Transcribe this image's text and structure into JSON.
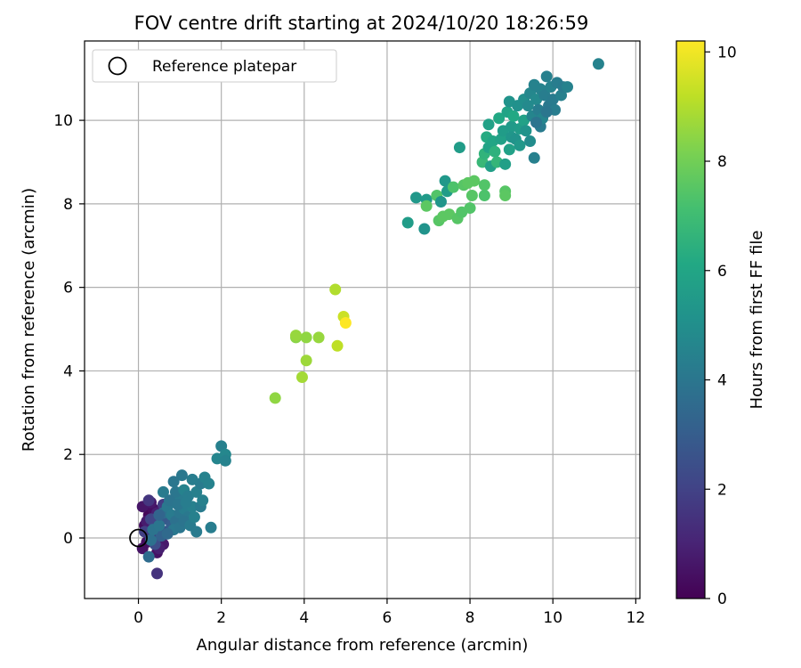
{
  "chart_data": {
    "type": "scatter",
    "title": "FOV centre drift starting at 2024/10/20 18:26:59",
    "xlabel": "Angular distance from reference (arcmin)",
    "ylabel": "Rotation from reference (arcmin)",
    "xlim": [
      -1.3,
      12.1
    ],
    "ylim": [
      -1.45,
      11.9
    ],
    "xticks": [
      0,
      2,
      4,
      6,
      8,
      10,
      12
    ],
    "yticks": [
      0,
      2,
      4,
      6,
      8,
      10
    ],
    "grid": true,
    "legend": {
      "position": "top-left",
      "entries": [
        "Reference platepar"
      ]
    },
    "reference_point": {
      "x": 0,
      "y": 0,
      "label": "Reference platepar"
    },
    "colorbar": {
      "label": "Hours from first FF file",
      "colormap": "viridis",
      "range": [
        0,
        10.2
      ],
      "ticks": [
        0,
        2,
        4,
        6,
        8,
        10
      ]
    },
    "points": [
      [
        0.1,
        -0.25,
        0.5
      ],
      [
        0.2,
        -0.1,
        0.4
      ],
      [
        0.3,
        0.0,
        0.6
      ],
      [
        0.15,
        0.3,
        0.3
      ],
      [
        0.25,
        0.55,
        0.2
      ],
      [
        0.35,
        0.7,
        0.4
      ],
      [
        0.1,
        0.75,
        0.6
      ],
      [
        0.3,
        0.85,
        0.7
      ],
      [
        0.2,
        0.4,
        0.8
      ],
      [
        0.4,
        0.2,
        1.0
      ],
      [
        0.5,
        0.35,
        1.2
      ],
      [
        0.45,
        0.6,
        0.9
      ],
      [
        0.55,
        0.1,
        1.1
      ],
      [
        0.6,
        -0.15,
        0.7
      ],
      [
        0.45,
        -0.35,
        0.5
      ],
      [
        0.5,
        -0.25,
        0.9
      ],
      [
        0.35,
        -0.05,
        1.3
      ],
      [
        0.45,
        -0.85,
        1.5
      ],
      [
        0.25,
        0.9,
        1.6
      ],
      [
        0.6,
        0.8,
        1.8
      ],
      [
        0.15,
        0.15,
        1.9
      ],
      [
        0.3,
        0.45,
        2.1
      ],
      [
        0.55,
        0.5,
        2.2
      ],
      [
        0.4,
        -0.15,
        2.4
      ],
      [
        0.65,
        0.15,
        2.6
      ],
      [
        0.7,
        0.45,
        2.8
      ],
      [
        0.8,
        0.3,
        3.0
      ],
      [
        0.55,
        0.05,
        3.2
      ],
      [
        0.25,
        -0.45,
        3.6
      ],
      [
        0.3,
        -0.05,
        3.8
      ],
      [
        0.35,
        0.2,
        3.9
      ],
      [
        0.5,
        0.3,
        4.0
      ],
      [
        0.6,
        0.6,
        3.7
      ],
      [
        0.7,
        0.75,
        4.1
      ],
      [
        0.8,
        0.55,
        4.2
      ],
      [
        0.9,
        0.4,
        3.8
      ],
      [
        1.0,
        0.6,
        4.0
      ],
      [
        1.1,
        0.7,
        4.3
      ],
      [
        1.2,
        0.5,
        4.1
      ],
      [
        1.3,
        0.75,
        4.4
      ],
      [
        1.0,
        0.95,
        4.2
      ],
      [
        0.9,
        1.1,
        4.0
      ],
      [
        1.1,
        1.15,
        4.5
      ],
      [
        1.2,
        1.0,
        4.3
      ],
      [
        1.4,
        1.1,
        4.4
      ],
      [
        1.5,
        1.3,
        4.2
      ],
      [
        1.6,
        1.45,
        4.5
      ],
      [
        1.3,
        1.4,
        4.3
      ],
      [
        1.05,
        1.5,
        4.1
      ],
      [
        0.85,
        1.35,
        4.0
      ],
      [
        0.6,
        1.1,
        4.2
      ],
      [
        0.75,
        0.9,
        3.9
      ],
      [
        0.95,
        0.8,
        4.0
      ],
      [
        1.15,
        0.85,
        4.3
      ],
      [
        0.85,
        0.2,
        4.1
      ],
      [
        1.0,
        0.25,
        4.0
      ],
      [
        1.1,
        0.4,
        3.9
      ],
      [
        1.25,
        0.3,
        4.2
      ],
      [
        1.35,
        0.5,
        4.4
      ],
      [
        1.5,
        0.75,
        4.2
      ],
      [
        1.55,
        0.9,
        4.4
      ],
      [
        1.7,
        1.3,
        4.5
      ],
      [
        1.75,
        0.25,
        4.3
      ],
      [
        1.4,
        0.15,
        4.2
      ],
      [
        1.9,
        1.9,
        4.6
      ],
      [
        2.0,
        2.2,
        4.4
      ],
      [
        2.1,
        2.0,
        4.7
      ],
      [
        2.1,
        1.85,
        4.5
      ],
      [
        0.7,
        0.1,
        3.5
      ],
      [
        0.5,
        0.55,
        3.3
      ],
      [
        3.3,
        3.35,
        8.5
      ],
      [
        3.8,
        4.8,
        8.4
      ],
      [
        3.8,
        4.85,
        8.6
      ],
      [
        4.05,
        4.8,
        8.5
      ],
      [
        4.35,
        4.8,
        8.6
      ],
      [
        4.05,
        4.25,
        8.7
      ],
      [
        3.95,
        3.85,
        8.8
      ],
      [
        4.75,
        5.95,
        9.0
      ],
      [
        4.8,
        4.6,
        9.2
      ],
      [
        4.95,
        5.3,
        9.4
      ],
      [
        5.0,
        5.15,
        10.2
      ],
      [
        6.5,
        7.55,
        5.6
      ],
      [
        6.7,
        8.15,
        5.4
      ],
      [
        6.9,
        7.4,
        5.2
      ],
      [
        6.95,
        8.1,
        5.5
      ],
      [
        6.95,
        7.95,
        7.6
      ],
      [
        7.2,
        8.2,
        7.4
      ],
      [
        7.25,
        7.6,
        7.5
      ],
      [
        7.3,
        8.05,
        5.3
      ],
      [
        7.35,
        7.7,
        7.6
      ],
      [
        7.4,
        8.55,
        5.4
      ],
      [
        7.45,
        8.3,
        5.6
      ],
      [
        7.5,
        7.75,
        7.6
      ],
      [
        7.6,
        8.4,
        7.3
      ],
      [
        7.7,
        7.65,
        7.5
      ],
      [
        7.8,
        7.8,
        7.4
      ],
      [
        7.85,
        8.45,
        7.5
      ],
      [
        7.95,
        8.5,
        7.6
      ],
      [
        8.0,
        7.9,
        7.4
      ],
      [
        8.05,
        8.2,
        7.5
      ],
      [
        8.1,
        8.55,
        7.6
      ],
      [
        7.75,
        9.35,
        5.6
      ],
      [
        8.3,
        9.0,
        6.8
      ],
      [
        8.35,
        9.2,
        6.6
      ],
      [
        8.35,
        8.45,
        7.4
      ],
      [
        8.35,
        8.2,
        7.3
      ],
      [
        8.4,
        9.6,
        6.2
      ],
      [
        8.45,
        9.9,
        5.8
      ],
      [
        8.45,
        9.35,
        5.9
      ],
      [
        8.5,
        8.9,
        5.7
      ],
      [
        8.55,
        9.5,
        6.0
      ],
      [
        8.6,
        9.25,
        6.5
      ],
      [
        8.65,
        9.0,
        6.7
      ],
      [
        8.7,
        10.05,
        6.1
      ],
      [
        8.75,
        9.55,
        5.8
      ],
      [
        8.8,
        9.75,
        5.6
      ],
      [
        8.85,
        8.95,
        5.7
      ],
      [
        8.85,
        8.3,
        7.5
      ],
      [
        8.85,
        8.2,
        7.6
      ],
      [
        8.9,
        10.2,
        5.9
      ],
      [
        8.95,
        10.45,
        5.2
      ],
      [
        8.95,
        9.3,
        5.8
      ],
      [
        9.0,
        9.85,
        5.5
      ],
      [
        9.0,
        9.6,
        5.3
      ],
      [
        9.05,
        10.1,
        6.1
      ],
      [
        9.1,
        9.55,
        5.2
      ],
      [
        9.15,
        10.35,
        5.1
      ],
      [
        9.2,
        9.8,
        5.6
      ],
      [
        9.2,
        9.4,
        5.4
      ],
      [
        9.3,
        10.5,
        5.0
      ],
      [
        9.3,
        10.0,
        5.8
      ],
      [
        9.35,
        9.75,
        5.2
      ],
      [
        9.4,
        10.35,
        4.8
      ],
      [
        9.45,
        10.65,
        4.7
      ],
      [
        9.45,
        9.5,
        4.9
      ],
      [
        9.5,
        10.1,
        4.6
      ],
      [
        9.55,
        10.85,
        4.5
      ],
      [
        9.55,
        9.1,
        4.4
      ],
      [
        9.6,
        10.5,
        4.8
      ],
      [
        9.65,
        10.25,
        4.3
      ],
      [
        9.7,
        10.75,
        4.5
      ],
      [
        9.7,
        9.85,
        4.2
      ],
      [
        9.75,
        10.05,
        4.6
      ],
      [
        9.8,
        10.6,
        4.3
      ],
      [
        9.85,
        11.05,
        4.4
      ],
      [
        9.9,
        10.35,
        4.1
      ],
      [
        9.95,
        10.8,
        4.5
      ],
      [
        10.0,
        10.5,
        4.2
      ],
      [
        10.1,
        10.9,
        4.3
      ],
      [
        10.2,
        10.6,
        4.4
      ],
      [
        10.25,
        10.8,
        4.2
      ],
      [
        10.35,
        10.8,
        4.5
      ],
      [
        10.05,
        10.25,
        4.3
      ],
      [
        9.85,
        10.2,
        4.0
      ],
      [
        9.6,
        9.95,
        3.9
      ],
      [
        11.1,
        11.35,
        4.5
      ]
    ]
  }
}
